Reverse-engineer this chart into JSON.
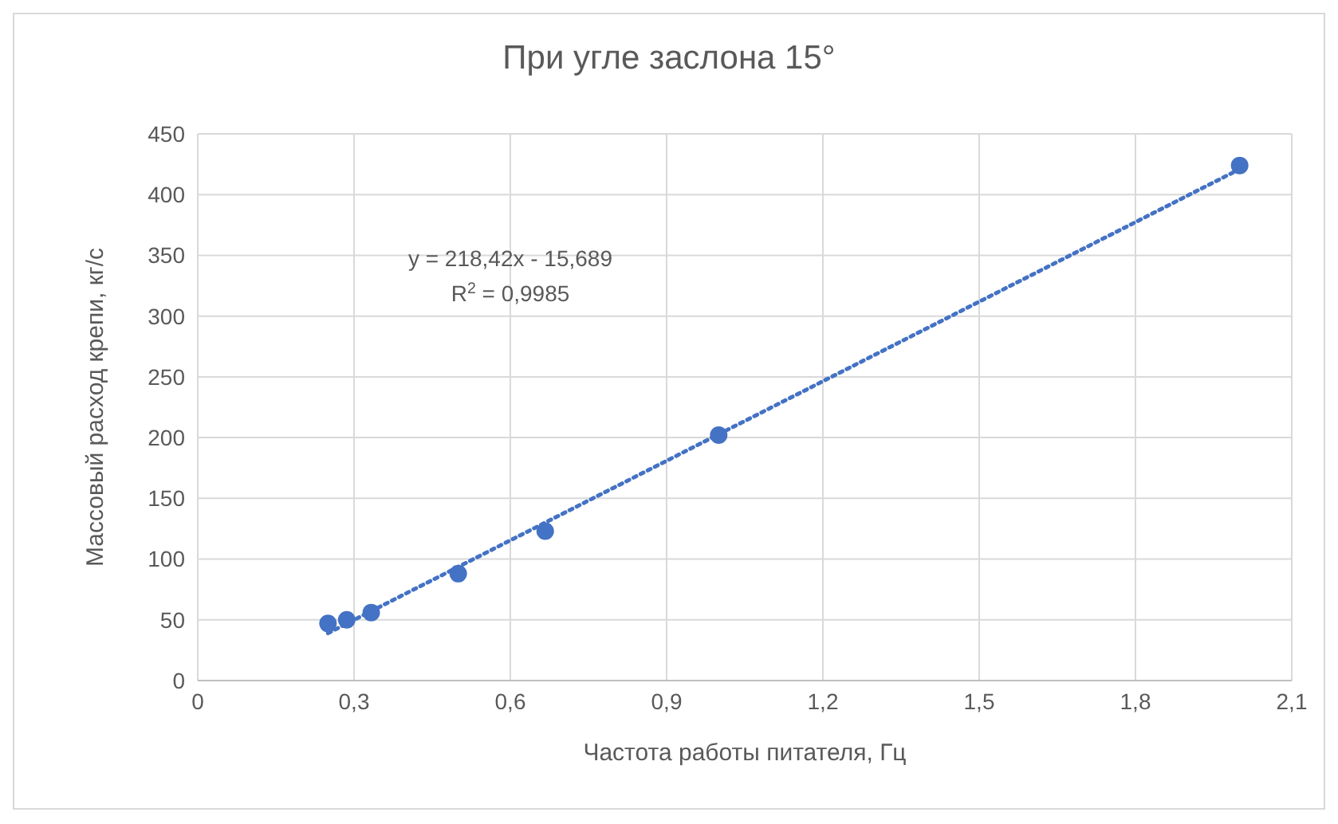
{
  "chart_data": {
    "type": "scatter",
    "title": "При угле заслона 15°",
    "xlabel": "Частота работы питателя, Гц",
    "ylabel": "Массовый расход крепи, кг/с",
    "series": [
      {
        "color": "#4472c4",
        "x": [
          0.25,
          0.286,
          0.333,
          0.5,
          0.667,
          1.0,
          2.0
        ],
        "values": [
          47,
          50,
          56,
          88,
          123,
          202,
          424
        ],
        "marker": "circle"
      },
      {
        "type": "line",
        "color": "#4472c4",
        "x": [
          0.25,
          2.0
        ],
        "values": [
          39,
          421
        ],
        "line_style": "dotted",
        "marker": "none"
      }
    ],
    "annotations": [
      "y = 218,42x - 15,689",
      "R$^{2}$ = 0,9985"
    ],
    "xlim": [
      0,
      2.1
    ],
    "xticks": [
      {
        "value": 0,
        "label": "0"
      },
      {
        "value": 0.3,
        "label": "0,3"
      },
      {
        "value": 0.6,
        "label": "0,6"
      },
      {
        "value": 0.9,
        "label": "0,9"
      },
      {
        "value": 1.2,
        "label": "1,2"
      },
      {
        "value": 1.5,
        "label": "1,5"
      },
      {
        "value": 1.8,
        "label": "1,8"
      },
      {
        "value": 2.1,
        "label": "2,1"
      }
    ],
    "ylim": [
      0,
      450
    ],
    "yticks": [
      0,
      50,
      100,
      150,
      200,
      250,
      300,
      350,
      400,
      450
    ],
    "grid": true,
    "legend": false
  }
}
